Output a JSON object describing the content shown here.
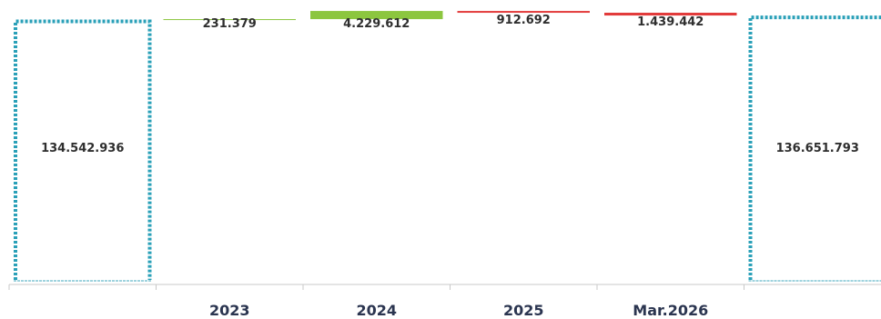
{
  "chart_data": {
    "type": "bar",
    "subtype": "waterfall",
    "categories": [
      "",
      "2023",
      "2024",
      "2025",
      "Mar.2026",
      ""
    ],
    "start": {
      "label": "134.542.936",
      "value": 134542936
    },
    "end": {
      "label": "136.651.793",
      "value": 136651793
    },
    "steps": [
      {
        "category": "2023",
        "value": 231379,
        "label": "231.379",
        "direction": "up"
      },
      {
        "category": "2024",
        "value": 4229612,
        "label": "4.229.612",
        "direction": "up"
      },
      {
        "category": "2025",
        "value": -912692,
        "label": "912.692",
        "direction": "down"
      },
      {
        "category": "Mar.2026",
        "value": -1439442,
        "label": "1.439.442",
        "direction": "down"
      }
    ],
    "ylim": [
      0,
      139500000
    ],
    "grid": false,
    "colors": {
      "total_outline": "#2aa0b8",
      "increase": "#8cc63f",
      "decrease": "#e23b3b",
      "axis": "#c8c8c8",
      "category_text": "#2b3550",
      "value_text": "#2e2e2e"
    }
  }
}
